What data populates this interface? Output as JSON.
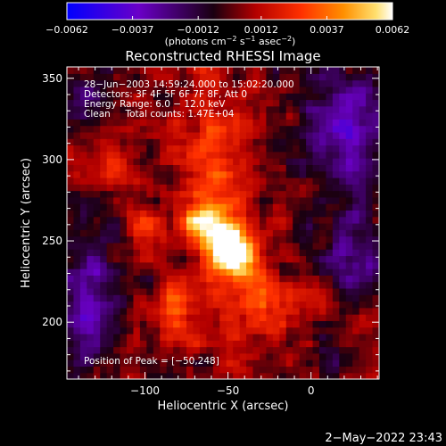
{
  "chart_data": {
    "type": "heatmap",
    "title": "Reconstructed RHESSI Image",
    "xlabel": "Heliocentric X (arcsec)",
    "ylabel": "Heliocentric Y (arcsec)",
    "xlim": [
      -147,
      41
    ],
    "ylim": [
      165,
      357
    ],
    "x_ticks": [
      -100,
      -50,
      0
    ],
    "x_tick_labels": [
      "−100",
      "−50",
      "0"
    ],
    "y_ticks": [
      200,
      250,
      300,
      350
    ],
    "y_tick_labels": [
      "200",
      "250",
      "300",
      "350"
    ],
    "colorbar": {
      "range": [
        -0.0062,
        0.0062
      ],
      "ticks": [
        -0.0062,
        -0.0037,
        -0.0012,
        0.0012,
        0.0037,
        0.0062
      ],
      "tick_labels": [
        "−0.0062",
        "−0.0037",
        "−0.0012",
        "0.0012",
        "0.0037",
        "0.0062"
      ],
      "unit_label_main": "(photons cm",
      "unit_exp1": "−2",
      "unit_mid": " s",
      "unit_exp2": "−1",
      "unit_mid2": " asec",
      "unit_exp3": "−2",
      "unit_end": ")",
      "colors": [
        "#0000ff",
        "#6a00c8",
        "#000000",
        "#b40000",
        "#ff3000",
        "#ff9000",
        "#ffe070",
        "#ffffff"
      ]
    },
    "info_lines": [
      "28−Jun−2003 14:59:24.000 to 15:02:20.000",
      "Detectors: 3F 4F 5F 6F 7F 8F, Att 0",
      "Energy Range: 6.0 − 12.0 keV",
      "Clean     Total counts: 1.47E+04"
    ],
    "peak_label": "Position of Peak = [−50,248]",
    "peak": [
      -50,
      248
    ],
    "peak_value": 0.0062,
    "sources": [
      {
        "x": -50,
        "y": 248,
        "amp": 1.0,
        "sx": 10,
        "sy": 12
      },
      {
        "x": -65,
        "y": 262,
        "amp": 0.75,
        "sx": 8,
        "sy": 8
      },
      {
        "x": -40,
        "y": 235,
        "amp": 0.6,
        "sx": 9,
        "sy": 10
      },
      {
        "x": -60,
        "y": 300,
        "amp": 0.45,
        "sx": 14,
        "sy": 30
      },
      {
        "x": -100,
        "y": 260,
        "amp": 0.35,
        "sx": 10,
        "sy": 8
      },
      {
        "x": -30,
        "y": 205,
        "amp": 0.4,
        "sx": 18,
        "sy": 15
      },
      {
        "x": -120,
        "y": 295,
        "amp": 0.3,
        "sx": 10,
        "sy": 10
      },
      {
        "x": -80,
        "y": 210,
        "amp": 0.35,
        "sx": 12,
        "sy": 14
      }
    ],
    "background_regions": [
      {
        "x": 20,
        "y": 320,
        "amp": -0.6,
        "sx": 18,
        "sy": 30
      },
      {
        "x": -135,
        "y": 215,
        "amp": -0.55,
        "sx": 14,
        "sy": 30
      },
      {
        "x": 25,
        "y": 245,
        "amp": -0.5,
        "sx": 12,
        "sy": 18
      },
      {
        "x": -135,
        "y": 340,
        "amp": -0.35,
        "sx": 10,
        "sy": 12
      },
      {
        "x": 10,
        "y": 180,
        "amp": -0.3,
        "sx": 12,
        "sy": 10
      }
    ],
    "pixel_arcsec": 4,
    "grid": false
  },
  "footer": {
    "timestamp": "2−May−2022 23:43"
  }
}
